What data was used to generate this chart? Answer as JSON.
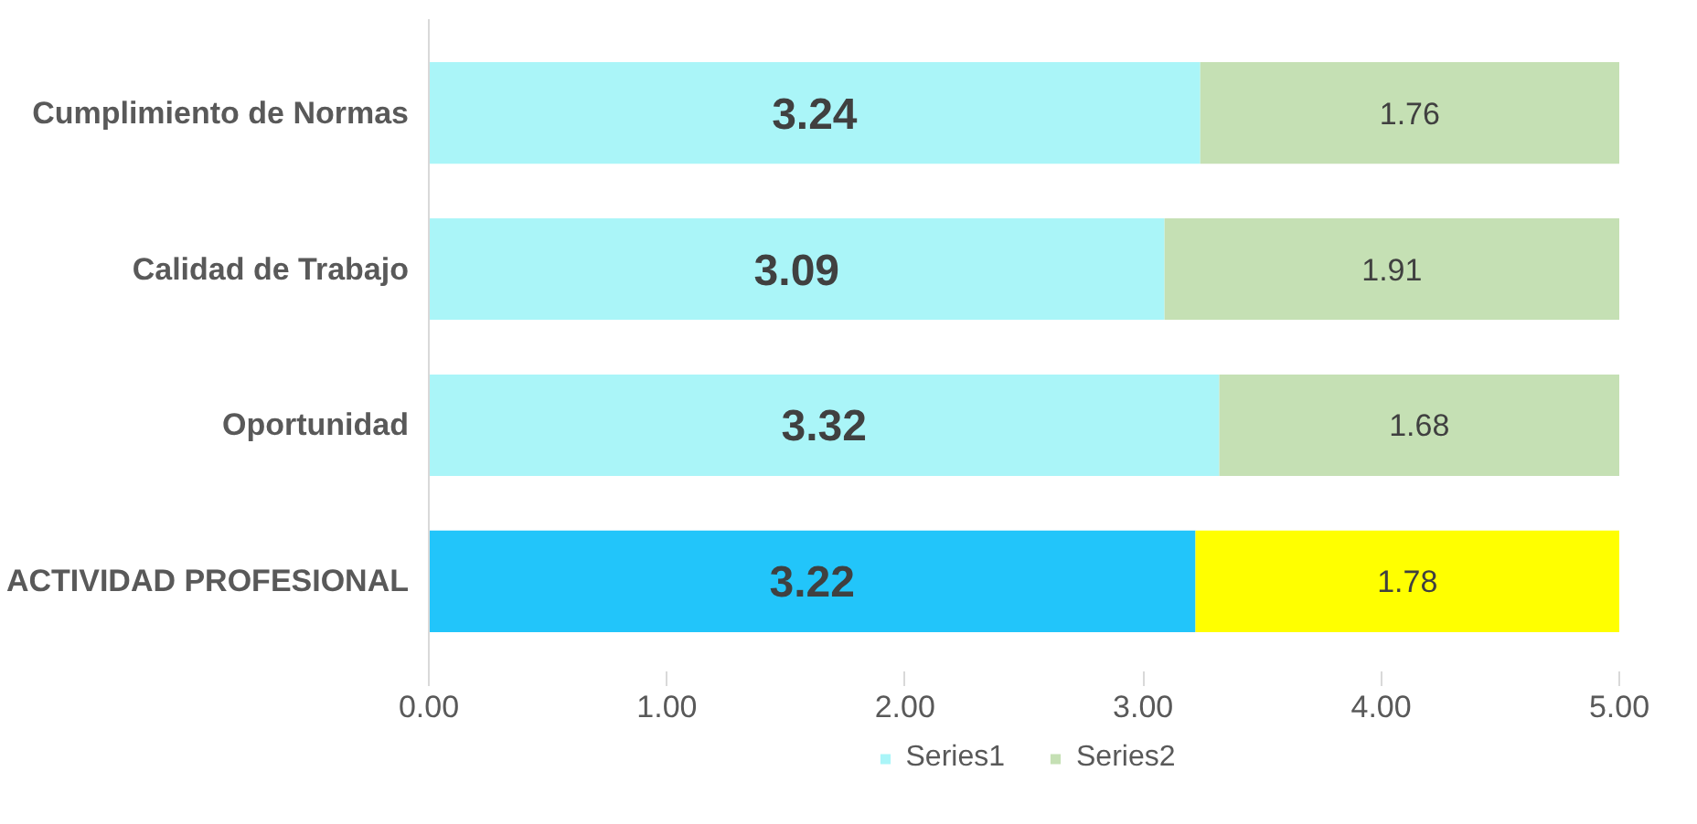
{
  "chart_data": {
    "type": "bar",
    "orientation": "horizontal",
    "stacked": true,
    "categories": [
      "Cumplimiento de Normas",
      "Calidad de Trabajo",
      "Oportunidad",
      "ACTIVIDAD PROFESIONAL"
    ],
    "series": [
      {
        "name": "Series1",
        "color": "#aaf5f8",
        "colors": [
          "#aaf5f8",
          "#aaf5f8",
          "#aaf5f8",
          "#22c5fa"
        ],
        "values": [
          3.24,
          3.09,
          3.32,
          3.22
        ]
      },
      {
        "name": "Series2",
        "color": "#c5e0b4",
        "colors": [
          "#c5e0b4",
          "#c5e0b4",
          "#c5e0b4",
          "#ffff00"
        ],
        "values": [
          1.76,
          1.91,
          1.68,
          1.78
        ]
      }
    ],
    "xlim": [
      0,
      5
    ],
    "xticks": [
      {
        "value": 0,
        "label": "0.00"
      },
      {
        "value": 1,
        "label": "1.00"
      },
      {
        "value": 2,
        "label": "2.00"
      },
      {
        "value": 3,
        "label": "3.00"
      },
      {
        "value": 4,
        "label": "4.00"
      },
      {
        "value": 5,
        "label": "5.00"
      }
    ],
    "data_labels": true,
    "grid": false,
    "legend": "bottom"
  }
}
